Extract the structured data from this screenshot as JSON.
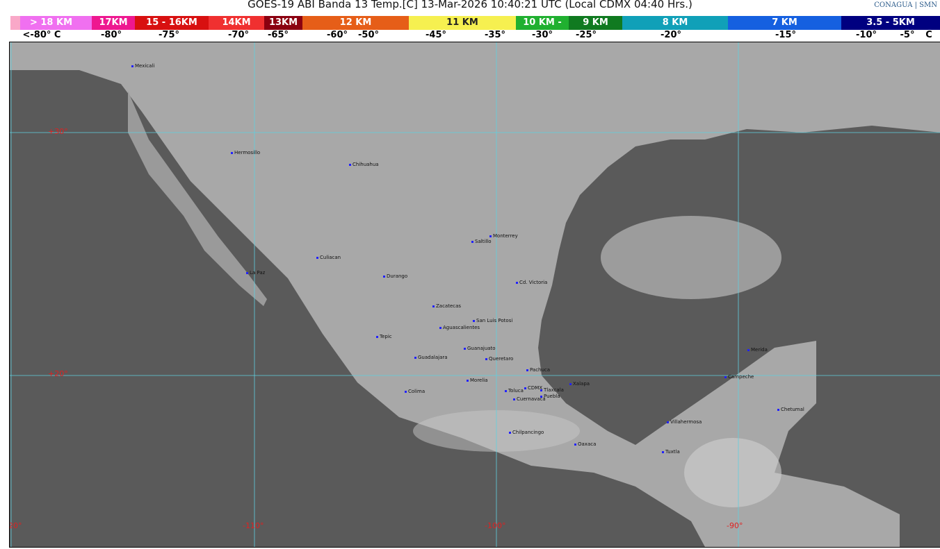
{
  "title": "GOES-19 ABI Banda 13 Temp.[C] 13-Mar-2026 10:40:21 UTC (Local CDMX  04:40 Hrs.)",
  "logos": {
    "conagua": "CONAGUA",
    "smn": "SMN"
  },
  "legend": {
    "segments": [
      {
        "label": "> 18 KM",
        "color": "#f070f0"
      },
      {
        "label": "17KM",
        "color": "#ee1890"
      },
      {
        "label": "15 - 16KM",
        "color": "#d81010"
      },
      {
        "label": "14KM",
        "color": "#f03030"
      },
      {
        "label": "13KM",
        "color": "#8b0010"
      },
      {
        "label": "12 KM",
        "color": "#e65e18"
      },
      {
        "label": "11 KM",
        "color": "#f6f050"
      },
      {
        "label": "10 KM -",
        "color": "#20b030"
      },
      {
        "label": "9 KM",
        "color": "#107a20"
      },
      {
        "label": "8 KM",
        "color": "#10a0b8"
      },
      {
        "label": "7 KM",
        "color": "#1560e0"
      },
      {
        "label": "3.5 - 5KM",
        "color": "#000080"
      }
    ],
    "temps": [
      "<-80° C",
      "-80°",
      "-75°",
      "-70°",
      "-65°",
      "-60°",
      "-50°",
      "-45°",
      "-35°",
      "-30°",
      "-25°",
      "-20°",
      "-15°",
      "-10°",
      "-5°",
      "C"
    ]
  },
  "grid": {
    "lat": [
      "+30°",
      "+20°"
    ],
    "lon": [
      "-120°",
      "-110°",
      "-100°",
      "-90°"
    ]
  },
  "cities": [
    "Mexicali",
    "Hermosillo",
    "Chihuahua",
    "Monterrey",
    "Saltillo",
    "Culiacan",
    "La Paz",
    "Durango",
    "Cd. Victoria",
    "Zacatecas",
    "San Luis Potosi",
    "Aguascalientes",
    "Tepic",
    "Guanajuato",
    "Guadalajara",
    "Queretaro",
    "Pachuca",
    "Xalapa",
    "Morelia",
    "Toluca",
    "CDMX",
    "Tlaxcala",
    "Puebla",
    "Cuernavaca",
    "Colima",
    "Chilpancingo",
    "Oaxaca",
    "Villahermosa",
    "Tuxtla",
    "Merida",
    "Campeche",
    "Chetumal"
  ]
}
